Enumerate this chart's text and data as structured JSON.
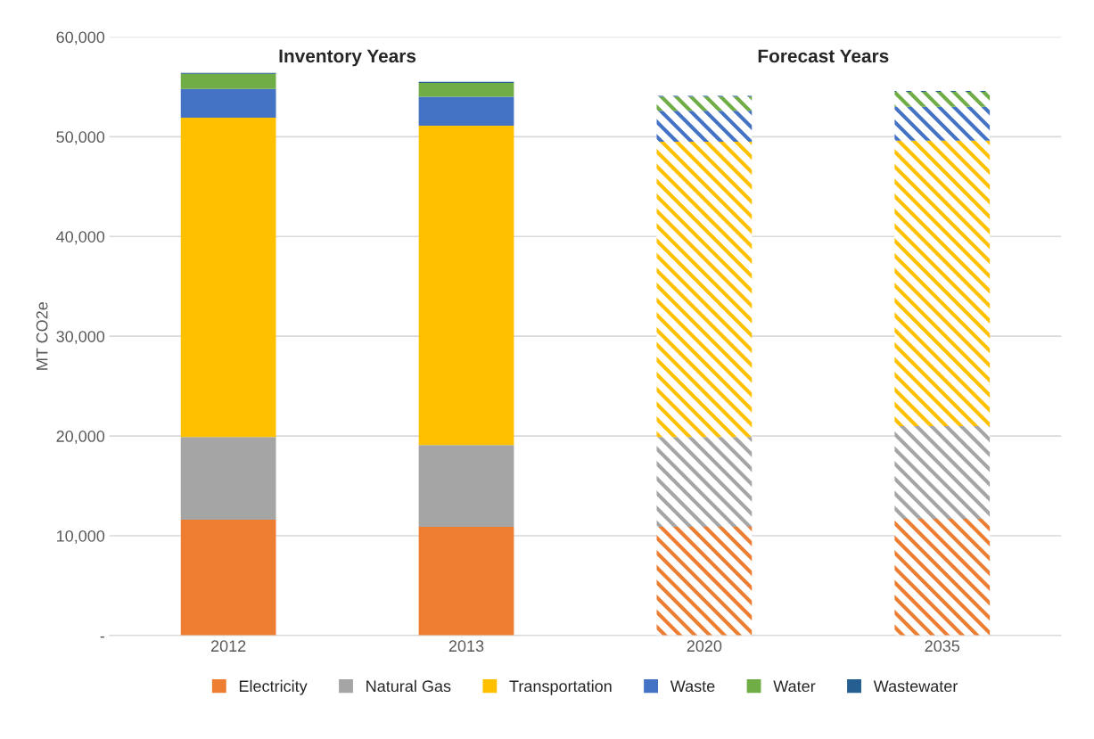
{
  "chart_data": {
    "type": "bar",
    "stacked": true,
    "ylabel": "MT CO2e",
    "categories": [
      "2012",
      "2013",
      "2020",
      "2035"
    ],
    "series": [
      {
        "name": "Electricity",
        "color": "#ed7d31",
        "values": [
          11600,
          10900,
          10900,
          11700
        ]
      },
      {
        "name": "Natural Gas",
        "color": "#a5a5a5",
        "values": [
          8300,
          8200,
          9000,
          9300
        ]
      },
      {
        "name": "Transportation",
        "color": "#ffc000",
        "values": [
          32000,
          32000,
          29600,
          28600
        ]
      },
      {
        "name": "Waste",
        "color": "#4472c4",
        "values": [
          2900,
          2900,
          3100,
          3400
        ]
      },
      {
        "name": "Water",
        "color": "#70ad47",
        "values": [
          1500,
          1400,
          1400,
          1500
        ]
      },
      {
        "name": "Wastewater",
        "color": "#255e91",
        "values": [
          100,
          100,
          100,
          100
        ]
      }
    ],
    "annotations": [
      "Inventory Years",
      "Forecast Years"
    ],
    "ylim": [
      0,
      60000
    ],
    "yticks": [
      {
        "value": 0,
        "label": "-"
      },
      {
        "value": 10000,
        "label": "10,000"
      },
      {
        "value": 20000,
        "label": "20,000"
      },
      {
        "value": 30000,
        "label": "30,000"
      },
      {
        "value": 40000,
        "label": "40,000"
      },
      {
        "value": 50000,
        "label": "50,000"
      },
      {
        "value": 60000,
        "label": "60,000"
      }
    ],
    "grid": "y",
    "legend": "bottom"
  }
}
